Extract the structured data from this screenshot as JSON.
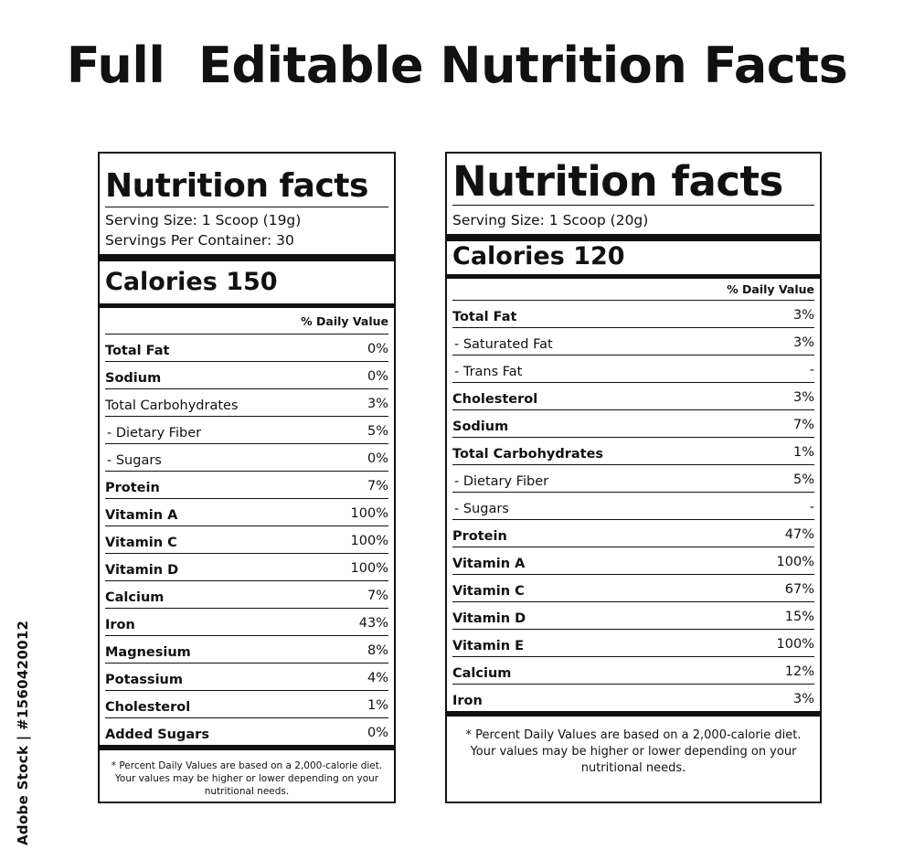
{
  "title": "Full  Editable Nutrition Facts",
  "watermark": "Adobe Stock | #1560420012",
  "labels": [
    {
      "heading": "Nutrition facts",
      "serving_size": "Serving Size: 1 Scoop (19g)",
      "servings_per_container": "Servings Per Container: 30",
      "calories": "Calories 150",
      "daily_value_header": "% Daily Value",
      "rows": [
        {
          "name": "Total Fat",
          "value": "0%"
        },
        {
          "name": "Sodium",
          "value": "0%"
        },
        {
          "name": "Total Carbohydrates",
          "value": "3%"
        },
        {
          "name": " - Dietary Fiber",
          "value": "5%"
        },
        {
          "name": " - Sugars",
          "value": "0%"
        },
        {
          "name": "Protein",
          "value": "7%"
        },
        {
          "name": "Vitamin A",
          "value": "100%"
        },
        {
          "name": "Vitamin C",
          "value": "100%"
        },
        {
          "name": "Vitamin D",
          "value": "100%"
        },
        {
          "name": "Calcium",
          "value": "7%"
        },
        {
          "name": "Iron",
          "value": "43%"
        },
        {
          "name": "Magnesium",
          "value": "8%"
        },
        {
          "name": "Potassium",
          "value": "4%"
        },
        {
          "name": "Cholesterol",
          "value": "1%"
        },
        {
          "name": "Added Sugars",
          "value": "0%"
        }
      ],
      "footnote": "* Percent Daily Values are based on a 2,000-calorie diet. Your values may be higher or lower depending on your nutritional needs."
    },
    {
      "heading": "Nutrition facts",
      "serving_size": "Serving Size: 1 Scoop (20g)",
      "calories": "Calories 120",
      "daily_value_header": "% Daily Value",
      "rows": [
        {
          "name": "Total Fat",
          "value": "3%"
        },
        {
          "name": " - Saturated Fat",
          "value": "3%"
        },
        {
          "name": " - Trans Fat",
          "value": "-"
        },
        {
          "name": "Cholesterol",
          "value": "3%"
        },
        {
          "name": "Sodium",
          "value": "7%"
        },
        {
          "name": "Total Carbohydrates",
          "value": "1%"
        },
        {
          "name": " - Dietary Fiber",
          "value": "5%"
        },
        {
          "name": " - Sugars",
          "value": "-"
        },
        {
          "name": "Protein",
          "value": "47%"
        },
        {
          "name": "Vitamin A",
          "value": "100%"
        },
        {
          "name": "Vitamin C",
          "value": "67%"
        },
        {
          "name": "Vitamin D",
          "value": "15%"
        },
        {
          "name": "Vitamin E",
          "value": "100%"
        },
        {
          "name": "Calcium",
          "value": "12%"
        },
        {
          "name": "Iron",
          "value": "3%"
        }
      ],
      "footnote": "* Percent Daily Values are based on a 2,000-calorie diet. Your values may be higher or lower depending on your nutritional needs."
    }
  ]
}
